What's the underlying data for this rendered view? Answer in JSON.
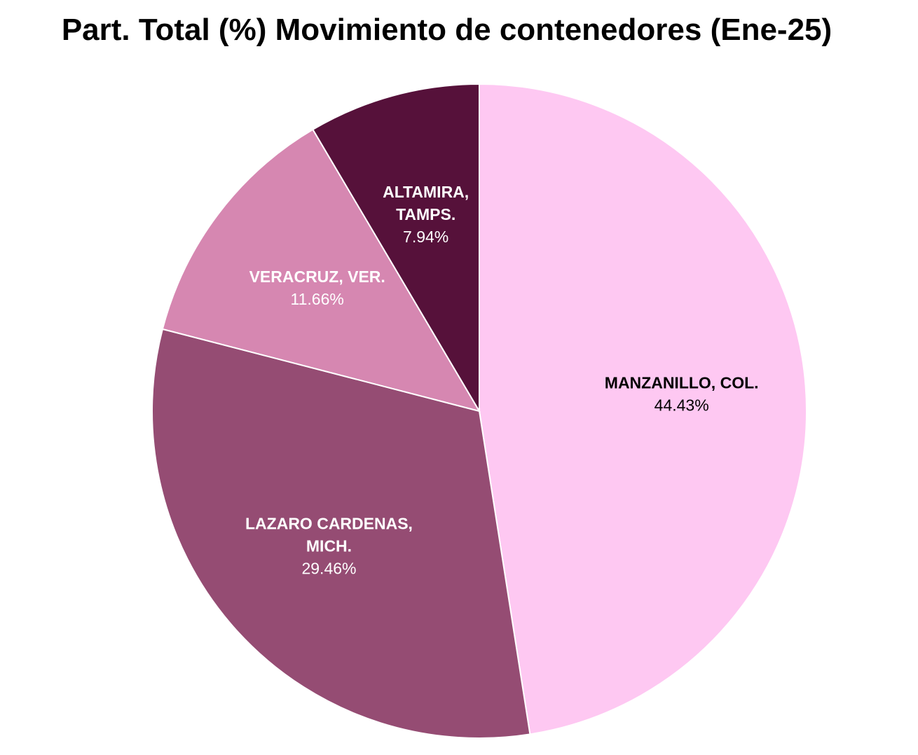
{
  "chart_data": {
    "type": "pie",
    "title": "Part. Total (%) Movimiento de contenedores (Ene-25)",
    "unit": "%",
    "slices": [
      {
        "name_lines": [
          "MANZANILLO, COL."
        ],
        "label": "MANZANILLO, COL.",
        "value": 44.43,
        "value_label": "44.43%",
        "color": "#fec8f2",
        "text_color": "#000000"
      },
      {
        "name_lines": [
          "LAZARO CARDENAS,",
          "MICH."
        ],
        "label": "LAZARO CARDENAS, MICH.",
        "value": 29.46,
        "value_label": "29.46%",
        "color": "#954c73",
        "text_color": "#ffffff"
      },
      {
        "name_lines": [
          "VERACRUZ, VER."
        ],
        "label": "VERACRUZ, VER.",
        "value": 11.66,
        "value_label": "11.66%",
        "color": "#d687b1",
        "text_color": "#ffffff"
      },
      {
        "name_lines": [
          "ALTAMIRA,",
          "TAMPS."
        ],
        "label": "ALTAMIRA, TAMPS.",
        "value": 7.94,
        "value_label": "7.94%",
        "color": "#56113a",
        "text_color": "#ffffff"
      }
    ],
    "start_angle": "12 o'clock",
    "direction": "clockwise",
    "legend": "none"
  }
}
